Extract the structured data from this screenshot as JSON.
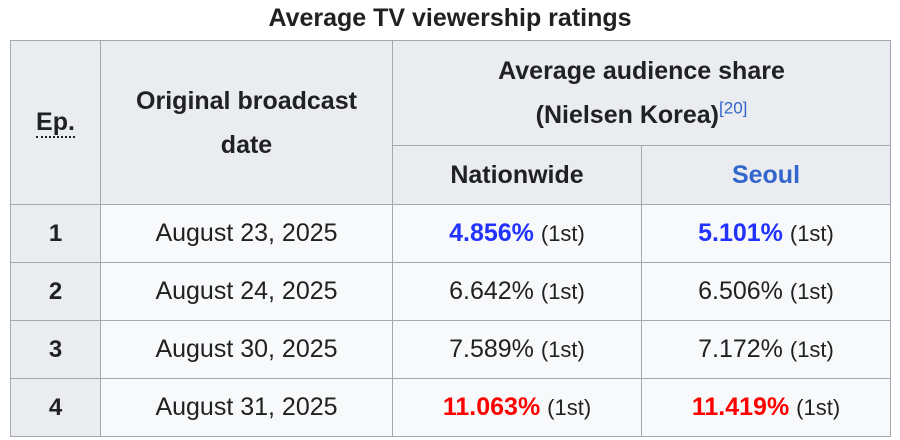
{
  "caption": "Average TV viewership ratings",
  "headers": {
    "ep": "Ep.",
    "date_line1": "Original broadcast",
    "date_line2": "date",
    "audience_line1": "Average audience share",
    "audience_line2": "(Nielsen Korea)",
    "audience_ref": "[20]",
    "nationwide": "Nationwide",
    "seoul": "Seoul"
  },
  "rows": [
    {
      "ep": "1",
      "date": "August 23, 2025",
      "nationwide": "4.856%",
      "nationwide_rank": "(1st)",
      "seoul": "5.101%",
      "seoul_rank": "(1st)"
    },
    {
      "ep": "2",
      "date": "August 24, 2025",
      "nationwide": "6.642%",
      "nationwide_rank": "(1st)",
      "seoul": "6.506%",
      "seoul_rank": "(1st)"
    },
    {
      "ep": "3",
      "date": "August 30, 2025",
      "nationwide": "7.589%",
      "nationwide_rank": "(1st)",
      "seoul": "7.172%",
      "seoul_rank": "(1st)"
    },
    {
      "ep": "4",
      "date": "August 31, 2025",
      "nationwide": "11.063%",
      "nationwide_rank": "(1st)",
      "seoul": "11.419%",
      "seoul_rank": "(1st)"
    }
  ],
  "colors": {
    "lowest": "#2233ff",
    "highest": "#ff0000",
    "link": "#3366cc"
  }
}
